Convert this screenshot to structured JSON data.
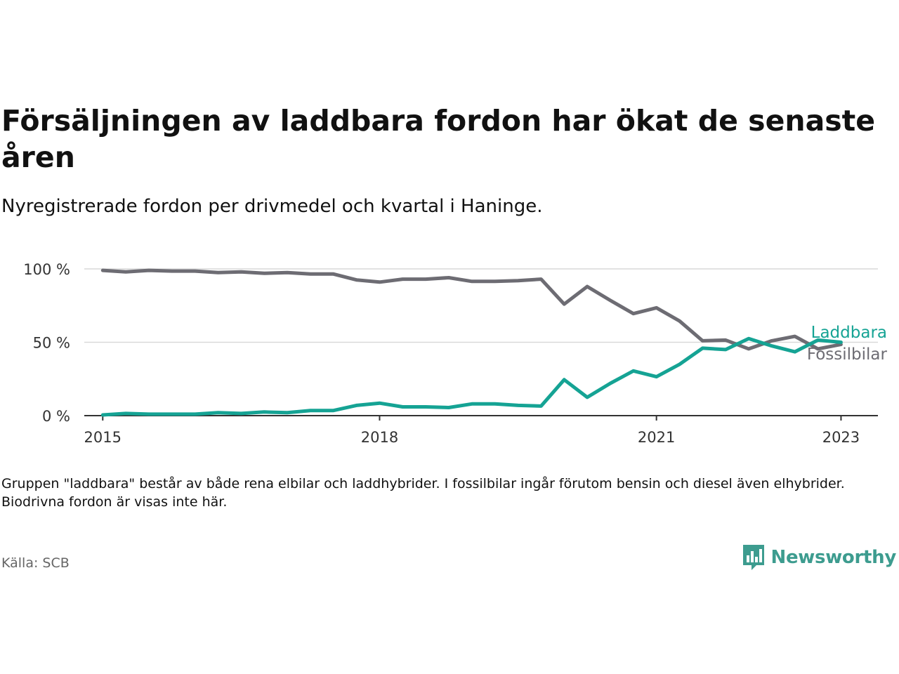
{
  "title": "Försäljningen av laddbara fordon har ökat de senaste åren",
  "subtitle": "Nyregistrerade fordon per drivmedel och kvartal i Haninge.",
  "note": "Gruppen \"laddbara\" består av både rena elbilar och laddhybrider. I fossilbilar ingår förutom bensin och diesel även elhybrider. Biodrivna fordon är visas inte här.",
  "source": "Källa: SCB",
  "brand": {
    "name": "Newsworthy",
    "icon": "newsworthy-logo-icon"
  },
  "colors": {
    "laddbara": "#15a394",
    "fossilbilar": "#6d6c73",
    "grid": "#d9d9d9",
    "axis": "#333333"
  },
  "chart_data": {
    "type": "line",
    "title": "Försäljningen av laddbara fordon har ökat de senaste åren",
    "xlabel": "",
    "ylabel": "",
    "x": [
      2015.0,
      2015.25,
      2015.5,
      2015.75,
      2016.0,
      2016.25,
      2016.5,
      2016.75,
      2017.0,
      2017.25,
      2017.5,
      2017.75,
      2018.0,
      2018.25,
      2018.5,
      2018.75,
      2019.0,
      2019.25,
      2019.5,
      2019.75,
      2020.0,
      2020.25,
      2020.5,
      2020.75,
      2021.0,
      2021.25,
      2021.5,
      2021.75,
      2022.0,
      2022.25,
      2022.5,
      2022.75,
      2023.0
    ],
    "xlim": [
      2014.8,
      2023.4
    ],
    "ylim": [
      0,
      100
    ],
    "xticks": [
      2015,
      2018,
      2021,
      2023
    ],
    "xtick_labels": [
      "2015",
      "2018",
      "2021",
      "2023"
    ],
    "yticks": [
      0,
      50,
      100
    ],
    "ytick_labels": [
      "0 %",
      "50 %",
      "100 %"
    ],
    "series": [
      {
        "name": "Fossilbilar",
        "label": "Fossilbilar",
        "color": "#6d6c73",
        "values": [
          99,
          98,
          99,
          98.5,
          98.5,
          97.5,
          98,
          97,
          97.5,
          96.5,
          96.5,
          92.5,
          91,
          93,
          93,
          94,
          91.5,
          91.5,
          92,
          93,
          76,
          88,
          78.5,
          69.5,
          73.5,
          64.5,
          51,
          51.5,
          45.5,
          51,
          54,
          45.5,
          48.5
        ]
      },
      {
        "name": "Laddbara",
        "label": "Laddbara",
        "color": "#15a394",
        "values": [
          0.5,
          1.5,
          1,
          1,
          1,
          2,
          1.5,
          2.5,
          2,
          3.5,
          3.5,
          7,
          8.5,
          6,
          6,
          5.5,
          8,
          8,
          7,
          6.5,
          24.5,
          12.5,
          22,
          30.5,
          26.5,
          35,
          46,
          45,
          52.5,
          47.5,
          43.5,
          51.5,
          50
        ]
      }
    ],
    "grid": true,
    "legend": "direct-labels-right"
  }
}
